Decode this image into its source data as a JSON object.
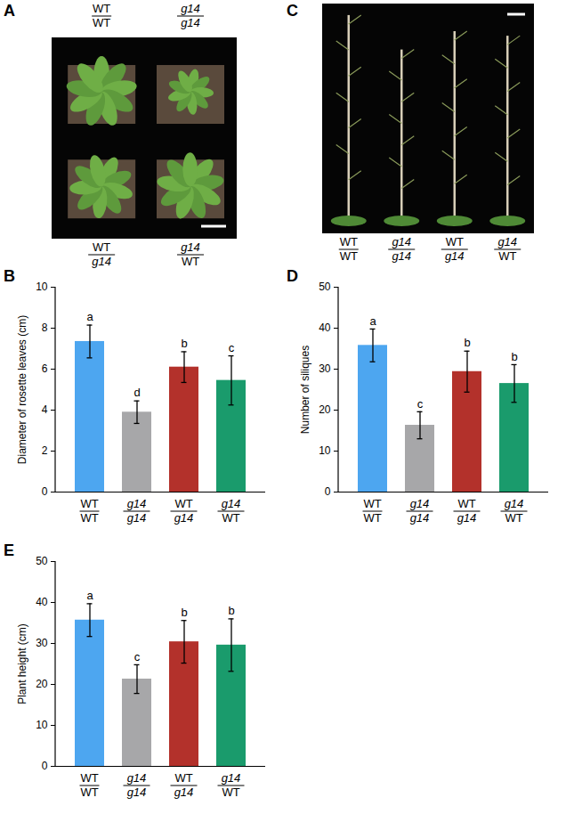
{
  "chart_data": [
    {
      "type": "bar",
      "panel_label": "B",
      "ylabel": "Diameter of rosette leaves (cm)",
      "categories": [
        "WT\nWT",
        "g14\ng14",
        "WT\ng14",
        "g14\nWT"
      ],
      "values": [
        7.35,
        3.9,
        6.1,
        5.45
      ],
      "errors": [
        0.8,
        0.55,
        0.75,
        1.2
      ],
      "significance_letters": [
        "a",
        "d",
        "b",
        "c"
      ],
      "colors": [
        "#4da6f0",
        "#a7a7a9",
        "#b3312b",
        "#1a9b6c"
      ],
      "ylim": [
        0,
        10
      ],
      "yticks": [
        0,
        2,
        4,
        6,
        8,
        10
      ],
      "grid": false
    },
    {
      "type": "bar",
      "panel_label": "D",
      "ylabel": "Number of siliques",
      "categories": [
        "WT\nWT",
        "g14\ng14",
        "WT\ng14",
        "g14\nWT"
      ],
      "values": [
        35.8,
        16.3,
        29.4,
        26.5
      ],
      "errors": [
        4.0,
        3.3,
        5.0,
        4.6
      ],
      "significance_letters": [
        "a",
        "c",
        "b",
        "b"
      ],
      "colors": [
        "#4da6f0",
        "#a7a7a9",
        "#b3312b",
        "#1a9b6c"
      ],
      "ylim": [
        0,
        50
      ],
      "yticks": [
        0,
        10,
        20,
        30,
        40,
        50
      ],
      "grid": false
    },
    {
      "type": "bar",
      "panel_label": "E",
      "ylabel": "Plant height (cm)",
      "categories": [
        "WT\nWT",
        "g14\ng14",
        "WT\ng14",
        "g14\nWT"
      ],
      "values": [
        35.7,
        21.3,
        30.4,
        29.6
      ],
      "errors": [
        4.0,
        3.5,
        5.2,
        6.4
      ],
      "significance_letters": [
        "a",
        "c",
        "b",
        "b"
      ],
      "colors": [
        "#4da6f0",
        "#a7a7a9",
        "#b3312b",
        "#1a9b6c"
      ],
      "ylim": [
        0,
        50
      ],
      "yticks": [
        0,
        10,
        20,
        30,
        40,
        50
      ],
      "grid": false
    }
  ],
  "photo_panels": [
    {
      "panel_label": "A",
      "top_labels": [
        "WT\nWT",
        "g14\ng14"
      ],
      "bottom_labels": [
        "WT\ng14",
        "g14\nWT"
      ]
    },
    {
      "panel_label": "C",
      "bottom_labels": [
        "WT\nWT",
        "g14\ng14",
        "WT\ng14",
        "g14\nWT"
      ]
    }
  ]
}
